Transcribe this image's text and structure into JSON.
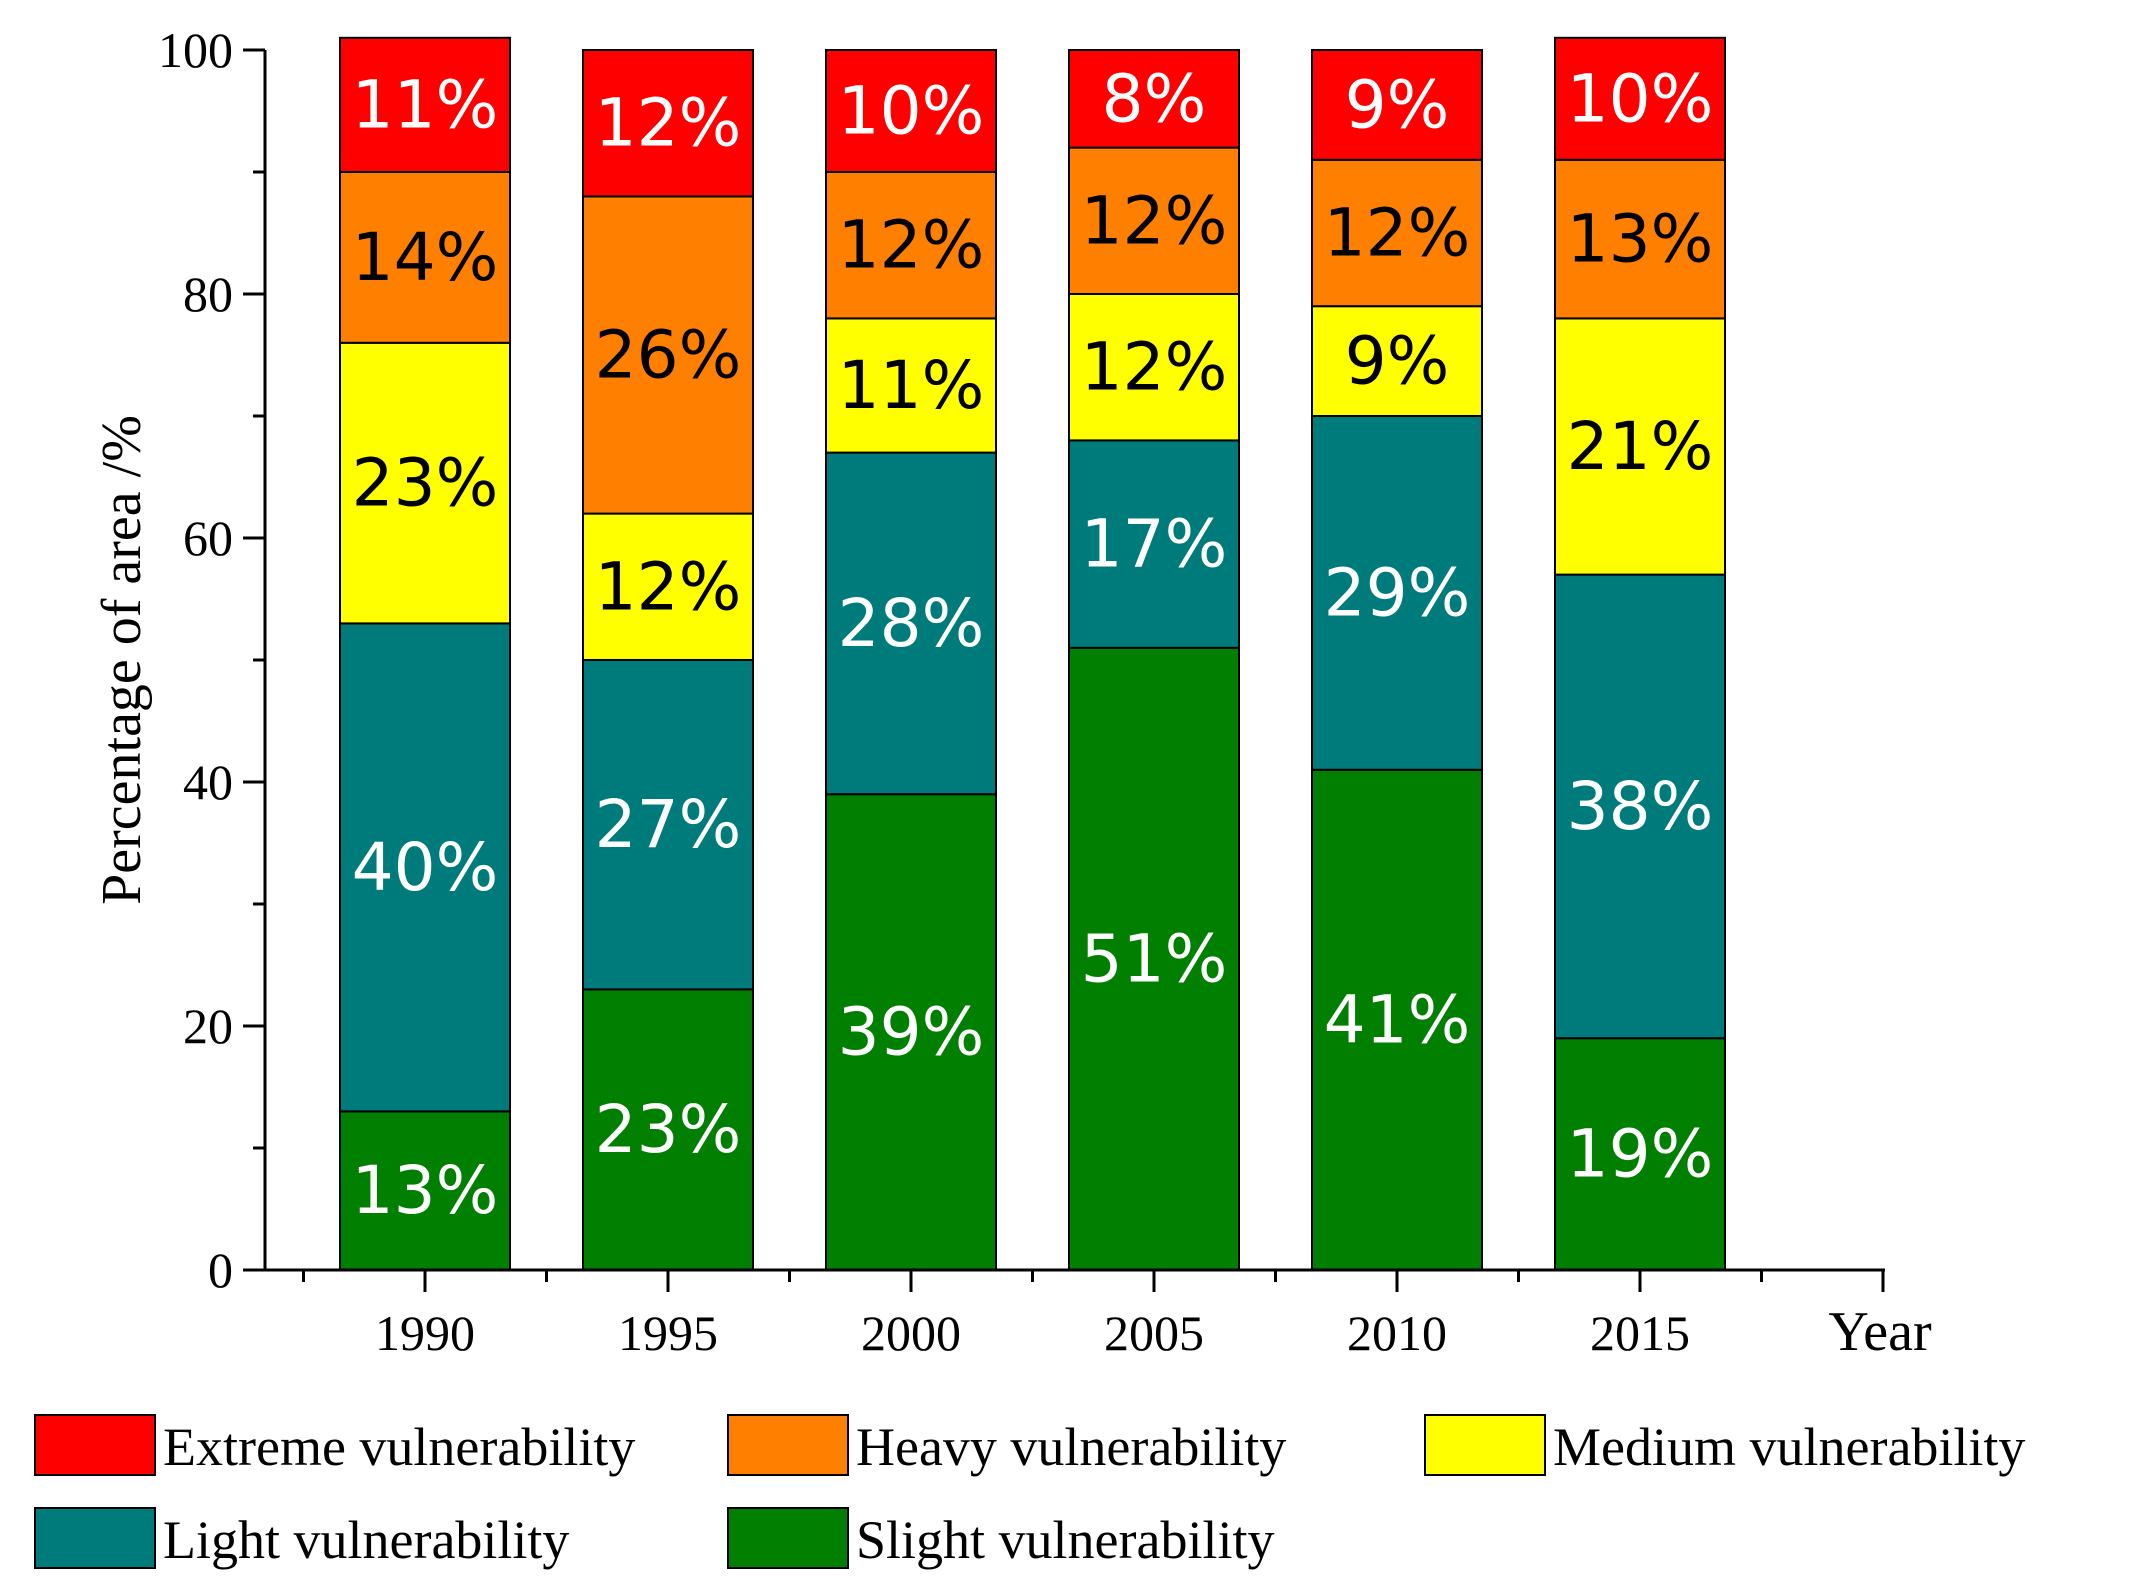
{
  "chart_data": {
    "type": "bar",
    "stacked": true,
    "xlabel": "Year",
    "ylabel": "Percentage of area /%",
    "ylim": [
      0,
      100
    ],
    "yticks": [
      "0",
      "20",
      "40",
      "60",
      "80",
      "100"
    ],
    "categories": [
      "1990",
      "1995",
      "2000",
      "2005",
      "2010",
      "2015"
    ],
    "series": [
      {
        "name": "Slight vulnerability",
        "color": "#007f00",
        "label_color": "#ffffff",
        "values": [
          13,
          23,
          39,
          51,
          41,
          19
        ],
        "labels": [
          "13%",
          "23%",
          "39%",
          "51%",
          "41%",
          "19%"
        ]
      },
      {
        "name": "Light vulnerability",
        "color": "#007b7b",
        "label_color": "#ffffff",
        "values": [
          40,
          27,
          28,
          17,
          29,
          38
        ],
        "labels": [
          "40%",
          "27%",
          "28%",
          "17%",
          "29%",
          "38%"
        ]
      },
      {
        "name": "Medium vulnerability",
        "color": "#ffff00",
        "label_color": "#000000",
        "values": [
          23,
          12,
          11,
          12,
          9,
          21
        ],
        "labels": [
          "23%",
          "12%",
          "11%",
          "12%",
          "9%",
          "21%"
        ]
      },
      {
        "name": "Heavy vulnerability",
        "color": "#ff8000",
        "label_color": "#000000",
        "values": [
          14,
          26,
          12,
          12,
          12,
          13
        ],
        "labels": [
          "14%",
          "26%",
          "12%",
          "12%",
          "12%",
          "13%"
        ]
      },
      {
        "name": "Extreme  vulnerability",
        "color": "#ff0000",
        "label_color": "#ffffff",
        "values": [
          11,
          12,
          10,
          8,
          9,
          10
        ],
        "labels": [
          "11%",
          "12%",
          "10%",
          "8%",
          "9%",
          "10%"
        ]
      }
    ],
    "legend": {
      "placement": "bottom",
      "order": [
        "Extreme  vulnerability",
        "Heavy vulnerability",
        "Medium vulnerability",
        "Light vulnerability",
        "Slight vulnerability"
      ]
    },
    "grid": false
  }
}
